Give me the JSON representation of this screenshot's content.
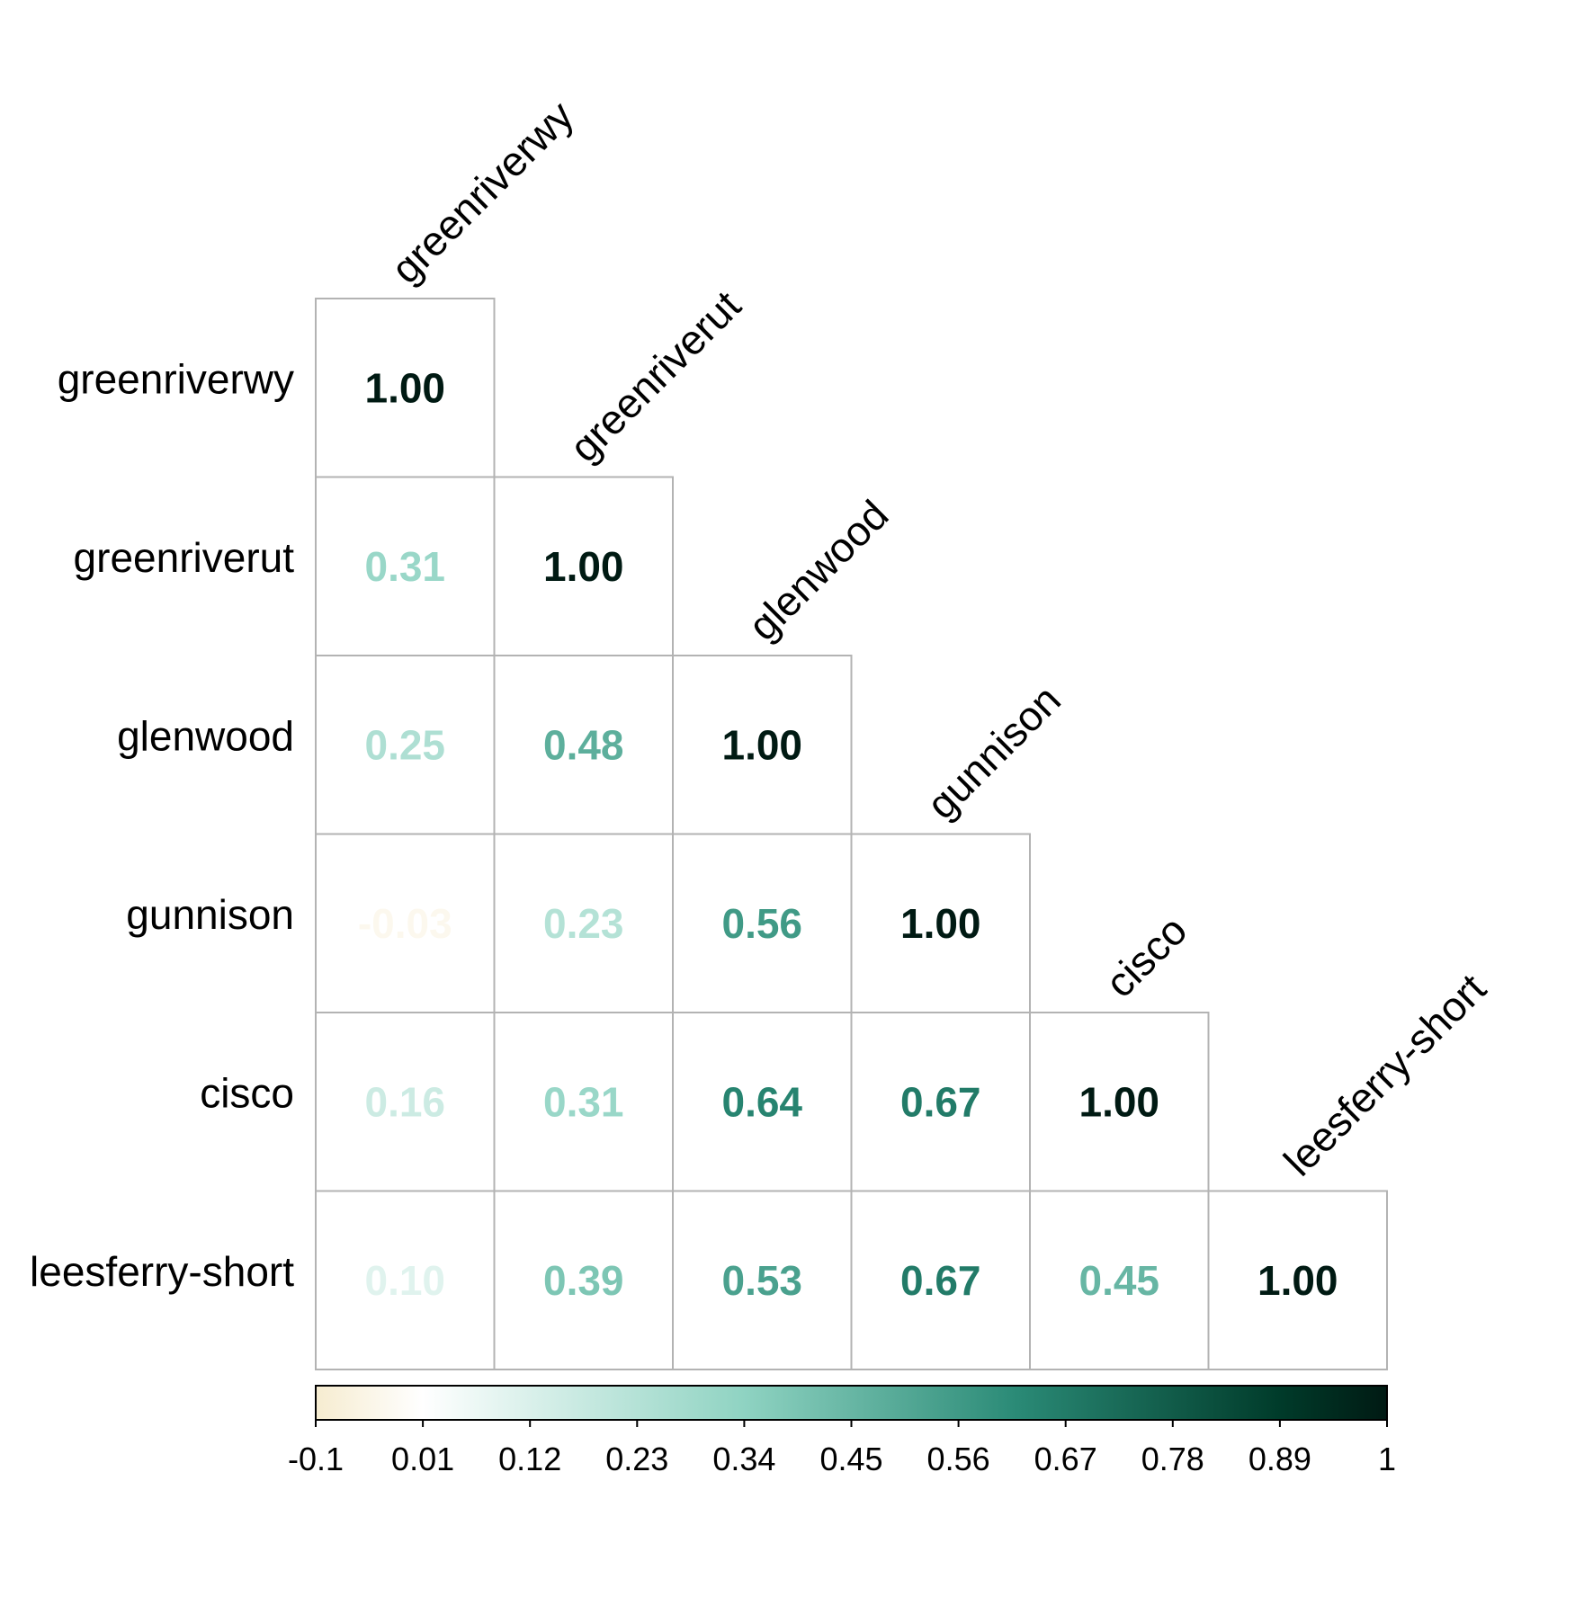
{
  "chart_data": {
    "type": "heatmap",
    "variables": [
      "greenriverwy",
      "greenriverut",
      "glenwood",
      "gunnison",
      "cisco",
      "leesferry-short"
    ],
    "matrix": [
      [
        1.0
      ],
      [
        0.31,
        1.0
      ],
      [
        0.25,
        0.48,
        1.0
      ],
      [
        -0.03,
        0.23,
        0.56,
        1.0
      ],
      [
        0.16,
        0.31,
        0.64,
        0.67,
        1.0
      ],
      [
        0.1,
        0.39,
        0.53,
        0.67,
        0.45,
        1.0
      ]
    ],
    "value_labels": [
      [
        "1.00"
      ],
      [
        "0.31",
        "1.00"
      ],
      [
        "0.25",
        "0.48",
        "1.00"
      ],
      [
        "-0.03",
        "0.23",
        "0.56",
        "1.00"
      ],
      [
        "0.16",
        "0.31",
        "0.64",
        "0.67",
        "1.00"
      ],
      [
        "0.10",
        "0.39",
        "0.53",
        "0.67",
        "0.45",
        "1.00"
      ]
    ],
    "triangle": "lower",
    "colorbar": {
      "range": [
        -0.1,
        1
      ],
      "ticks": [
        "-0.1",
        "0.01",
        "0.12",
        "0.23",
        "0.34",
        "0.45",
        "0.56",
        "0.67",
        "0.78",
        "0.89",
        "1"
      ],
      "colors": [
        "#f6ecd0",
        "#ffffff",
        "#8fd3c2",
        "#2a8a76",
        "#003b2a",
        "#001a13"
      ],
      "color_stops": [
        -0.1,
        0.01,
        0.34,
        0.62,
        0.89,
        1.0
      ],
      "placement": "bottom"
    },
    "grid_color": "#b3b3b3",
    "title": "",
    "xlabel": "",
    "ylabel": ""
  }
}
